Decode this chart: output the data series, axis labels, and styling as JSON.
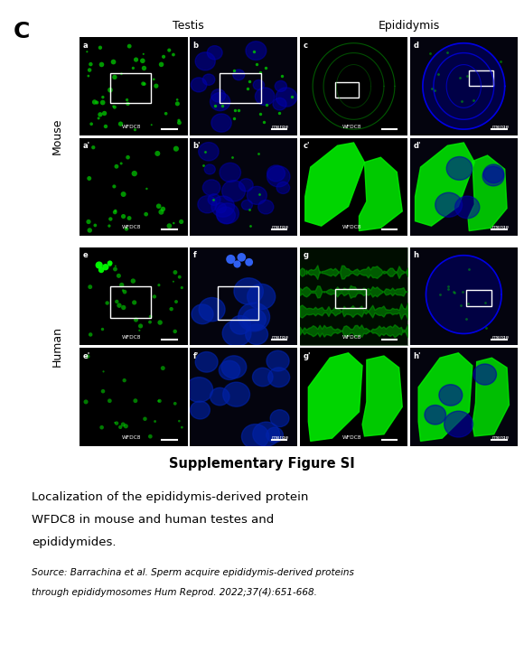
{
  "title_letter": "C",
  "col_headers": [
    "Testis",
    "Epididymis"
  ],
  "row_headers": [
    "Mouse",
    "Human"
  ],
  "wfdc8_label": "WFDC8",
  "merge_label": "merge",
  "figure_title": "Supplementary Figure SI",
  "caption_line1": "Localization of the epididymis-derived protein",
  "caption_line2": "WFDC8 in mouse and human testes and",
  "caption_line3": "epididymides.",
  "source_line1": "Source: Barrachina et al. Sperm acquire epididymis-derived proteins",
  "source_line2": "through epididymosomes Hum Reprod. 2022;37(4):651-668.",
  "bg_color": "#ffffff"
}
